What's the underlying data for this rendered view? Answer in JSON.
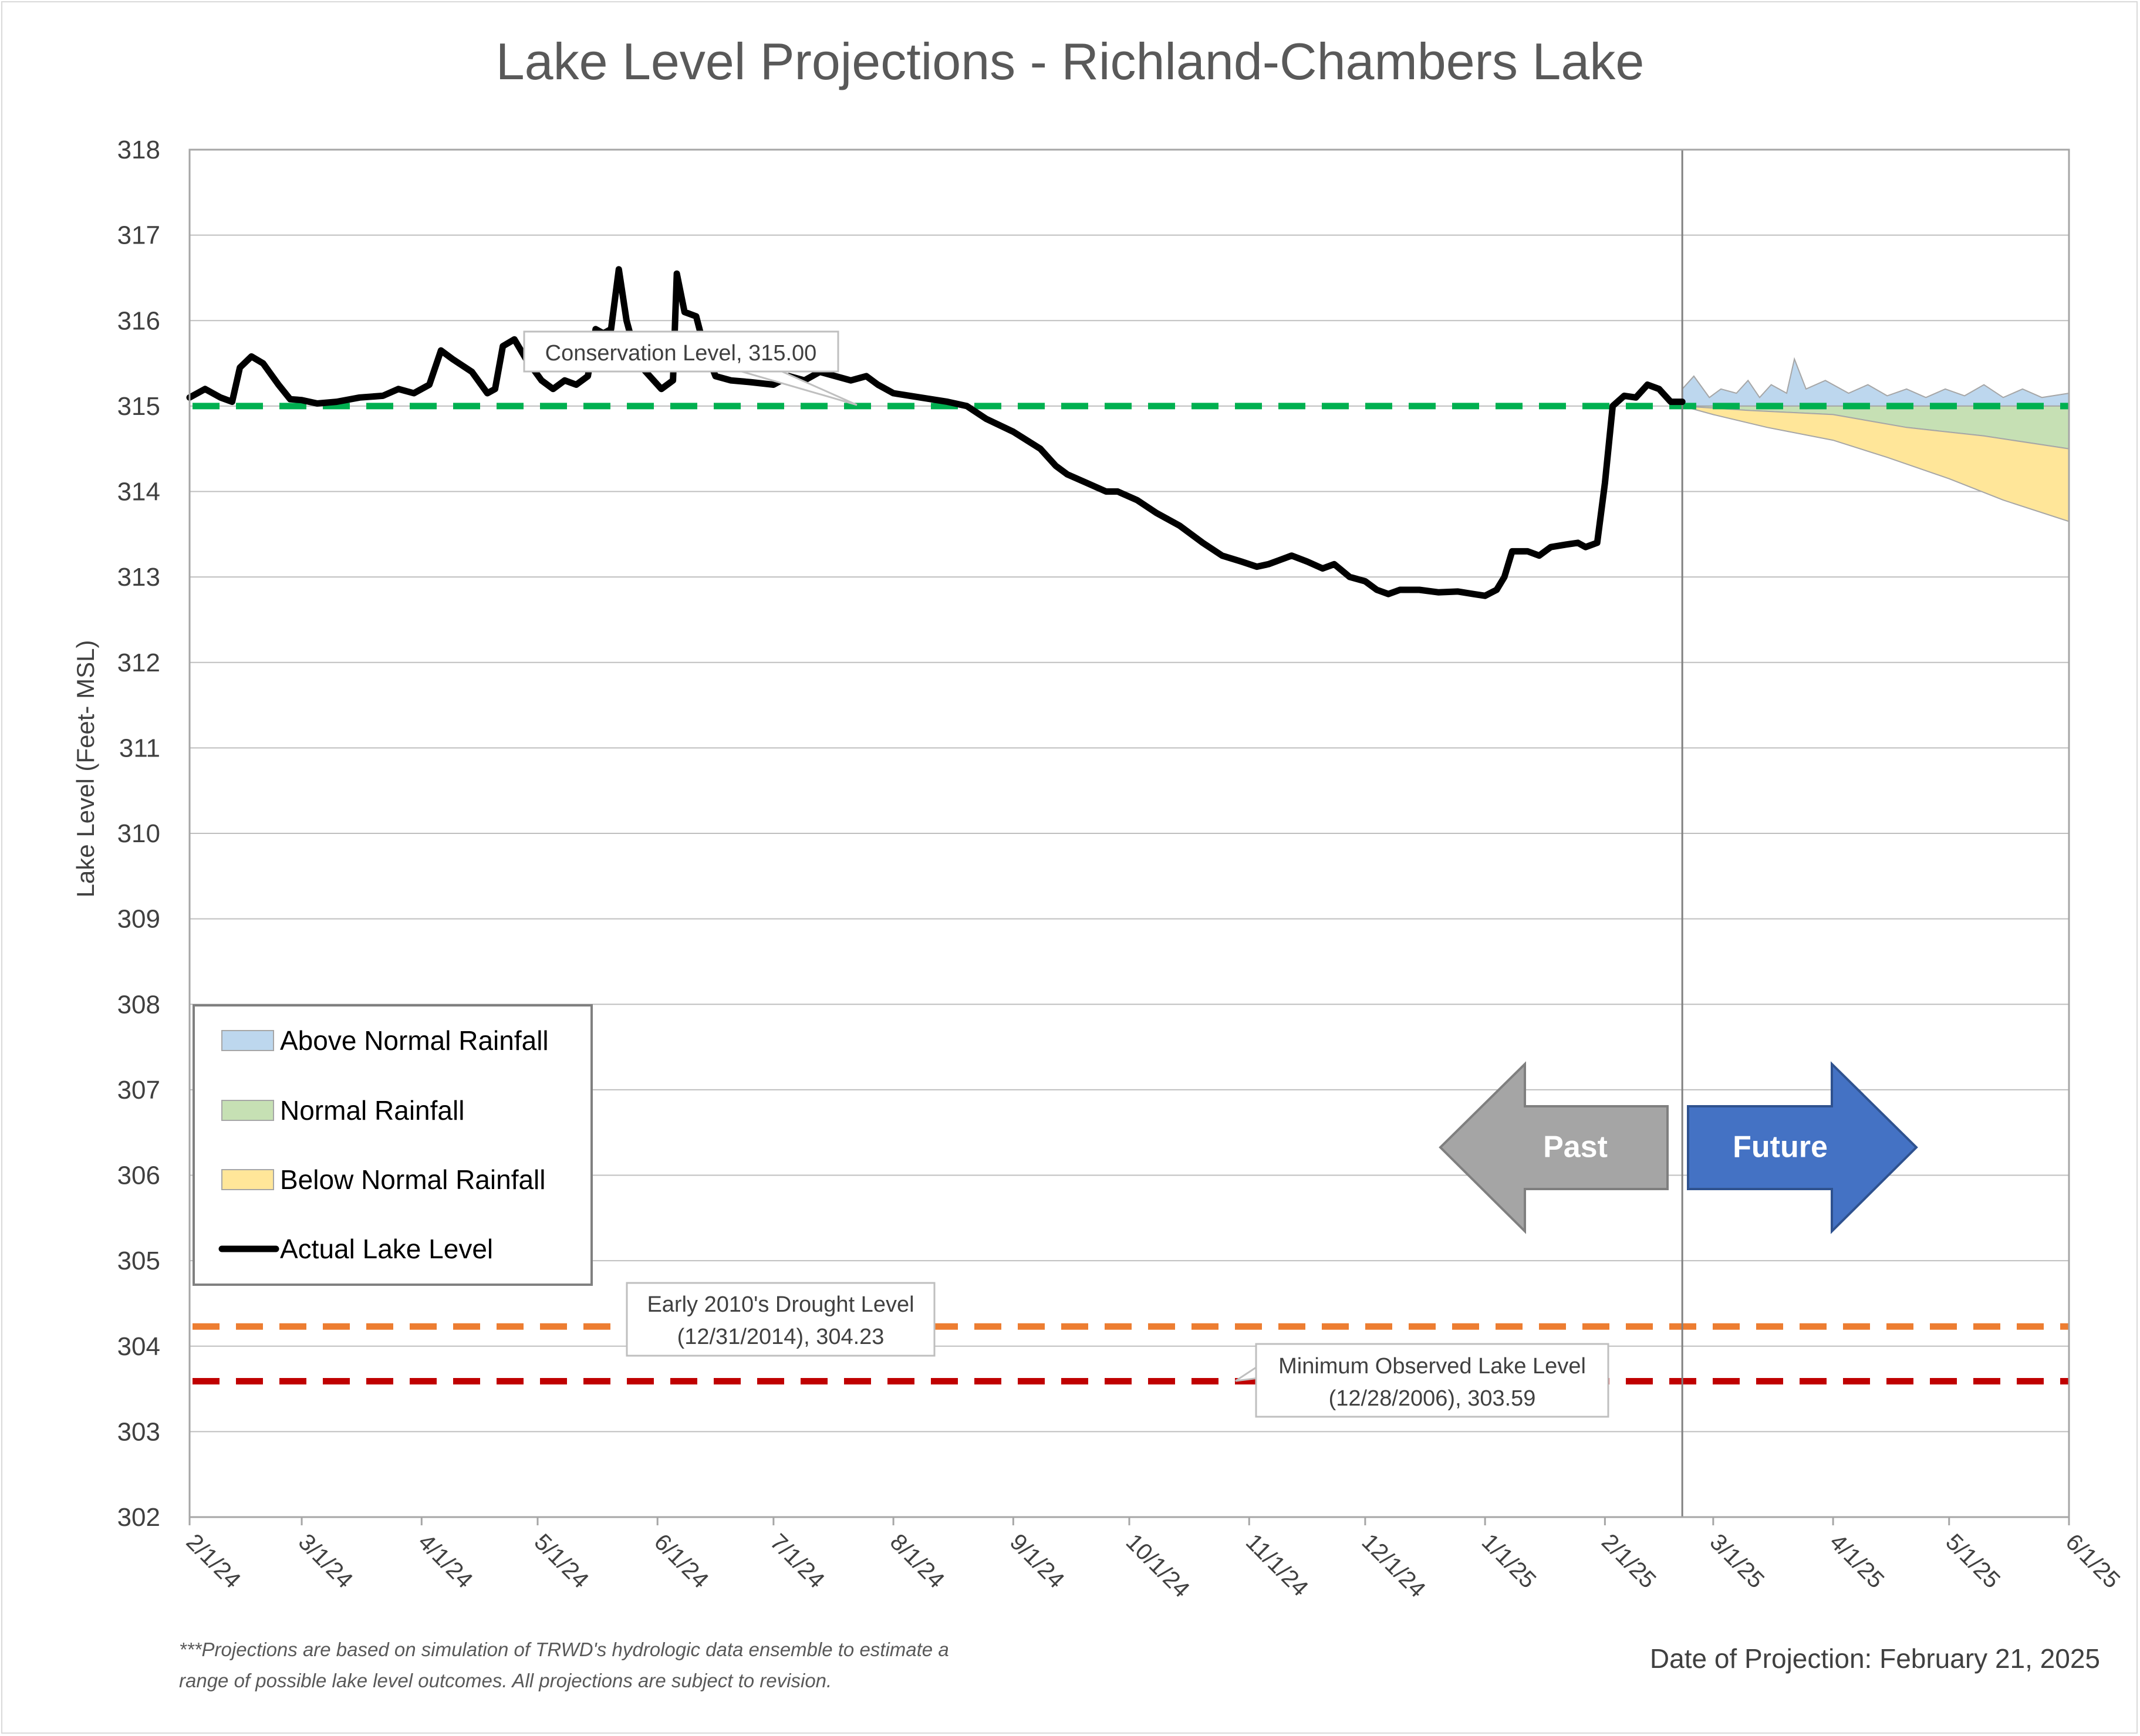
{
  "colors": {
    "actual": "#000000",
    "conservation": "#00b050",
    "drought": "#ed7d31",
    "minimum": "#c00000",
    "above_fill": "#bdd7ee",
    "normal_fill": "#c6e0b4",
    "below_fill": "#ffe699",
    "band_edge": "#a6a6a6",
    "past_arrow": "#a5a5a5",
    "future_arrow": "#4472c4",
    "grid": "#bfbfbf",
    "text": "#595959"
  },
  "chart_data": {
    "type": "line",
    "title": "Lake Level Projections - Richland-Chambers Lake",
    "ylabel": "Lake Level (Feet- MSL)",
    "xlabel": "",
    "ylim": [
      302,
      318
    ],
    "xlim": [
      "2024-02-01",
      "2025-06-01"
    ],
    "grid": "horizontal",
    "y_ticks": [
      "302",
      "303",
      "304",
      "305",
      "306",
      "307",
      "308",
      "309",
      "310",
      "311",
      "312",
      "313",
      "314",
      "315",
      "316",
      "317",
      "318"
    ],
    "x_ticks": [
      {
        "date": "2024-02-01",
        "label": "2/1/24"
      },
      {
        "date": "2024-03-01",
        "label": "3/1/24"
      },
      {
        "date": "2024-04-01",
        "label": "4/1/24"
      },
      {
        "date": "2024-05-01",
        "label": "5/1/24"
      },
      {
        "date": "2024-06-01",
        "label": "6/1/24"
      },
      {
        "date": "2024-07-01",
        "label": "7/1/24"
      },
      {
        "date": "2024-08-01",
        "label": "8/1/24"
      },
      {
        "date": "2024-09-01",
        "label": "9/1/24"
      },
      {
        "date": "2024-10-01",
        "label": "10/1/24"
      },
      {
        "date": "2024-11-01",
        "label": "11/1/24"
      },
      {
        "date": "2024-12-01",
        "label": "12/1/24"
      },
      {
        "date": "2025-01-01",
        "label": "1/1/25"
      },
      {
        "date": "2025-02-01",
        "label": "2/1/25"
      },
      {
        "date": "2025-03-01",
        "label": "3/1/25"
      },
      {
        "date": "2025-04-01",
        "label": "4/1/25"
      },
      {
        "date": "2025-05-01",
        "label": "5/1/25"
      },
      {
        "date": "2025-06-01",
        "label": "6/1/25"
      }
    ],
    "projection_date": "2025-02-21",
    "series": [
      {
        "name": "Actual Lake Level",
        "points": [
          [
            "2024-02-01",
            315.1
          ],
          [
            "2024-02-05",
            315.2
          ],
          [
            "2024-02-09",
            315.1
          ],
          [
            "2024-02-12",
            315.05
          ],
          [
            "2024-02-14",
            315.45
          ],
          [
            "2024-02-17",
            315.58
          ],
          [
            "2024-02-20",
            315.5
          ],
          [
            "2024-02-24",
            315.25
          ],
          [
            "2024-02-27",
            315.08
          ],
          [
            "2024-03-01",
            315.07
          ],
          [
            "2024-03-05",
            315.03
          ],
          [
            "2024-03-10",
            315.05
          ],
          [
            "2024-03-16",
            315.1
          ],
          [
            "2024-03-22",
            315.12
          ],
          [
            "2024-03-26",
            315.2
          ],
          [
            "2024-03-30",
            315.15
          ],
          [
            "2024-04-03",
            315.25
          ],
          [
            "2024-04-06",
            315.65
          ],
          [
            "2024-04-09",
            315.55
          ],
          [
            "2024-04-14",
            315.4
          ],
          [
            "2024-04-18",
            315.15
          ],
          [
            "2024-04-20",
            315.2
          ],
          [
            "2024-04-22",
            315.7
          ],
          [
            "2024-04-25",
            315.78
          ],
          [
            "2024-04-28",
            315.55
          ],
          [
            "2024-05-02",
            315.3
          ],
          [
            "2024-05-05",
            315.2
          ],
          [
            "2024-05-08",
            315.3
          ],
          [
            "2024-05-11",
            315.25
          ],
          [
            "2024-05-14",
            315.35
          ],
          [
            "2024-05-16",
            315.9
          ],
          [
            "2024-05-18",
            315.85
          ],
          [
            "2024-05-20",
            315.9
          ],
          [
            "2024-05-22",
            316.6
          ],
          [
            "2024-05-24",
            316.0
          ],
          [
            "2024-05-27",
            315.5
          ],
          [
            "2024-05-30",
            315.35
          ],
          [
            "2024-06-02",
            315.2
          ],
          [
            "2024-06-05",
            315.3
          ],
          [
            "2024-06-06",
            316.55
          ],
          [
            "2024-06-08",
            316.1
          ],
          [
            "2024-06-11",
            316.05
          ],
          [
            "2024-06-13",
            315.7
          ],
          [
            "2024-06-16",
            315.35
          ],
          [
            "2024-06-20",
            315.3
          ],
          [
            "2024-06-25",
            315.28
          ],
          [
            "2024-07-01",
            315.25
          ],
          [
            "2024-07-05",
            315.35
          ],
          [
            "2024-07-09",
            315.3
          ],
          [
            "2024-07-13",
            315.4
          ],
          [
            "2024-07-17",
            315.35
          ],
          [
            "2024-07-21",
            315.3
          ],
          [
            "2024-07-25",
            315.35
          ],
          [
            "2024-07-28",
            315.25
          ],
          [
            "2024-08-01",
            315.15
          ],
          [
            "2024-08-08",
            315.1
          ],
          [
            "2024-08-15",
            315.05
          ],
          [
            "2024-08-20",
            315.0
          ],
          [
            "2024-08-25",
            314.85
          ],
          [
            "2024-09-01",
            314.7
          ],
          [
            "2024-09-08",
            314.5
          ],
          [
            "2024-09-12",
            314.3
          ],
          [
            "2024-09-15",
            314.2
          ],
          [
            "2024-09-20",
            314.1
          ],
          [
            "2024-09-25",
            314.0
          ],
          [
            "2024-09-28",
            314.0
          ],
          [
            "2024-10-03",
            313.9
          ],
          [
            "2024-10-08",
            313.75
          ],
          [
            "2024-10-14",
            313.6
          ],
          [
            "2024-10-20",
            313.4
          ],
          [
            "2024-10-25",
            313.25
          ],
          [
            "2024-10-30",
            313.18
          ],
          [
            "2024-11-03",
            313.12
          ],
          [
            "2024-11-06",
            313.15
          ],
          [
            "2024-11-09",
            313.2
          ],
          [
            "2024-11-12",
            313.25
          ],
          [
            "2024-11-16",
            313.18
          ],
          [
            "2024-11-20",
            313.1
          ],
          [
            "2024-11-23",
            313.15
          ],
          [
            "2024-11-27",
            313.0
          ],
          [
            "2024-12-01",
            312.95
          ],
          [
            "2024-12-04",
            312.85
          ],
          [
            "2024-12-07",
            312.8
          ],
          [
            "2024-12-10",
            312.85
          ],
          [
            "2024-12-15",
            312.85
          ],
          [
            "2024-12-20",
            312.82
          ],
          [
            "2024-12-25",
            312.83
          ],
          [
            "2024-12-29",
            312.8
          ],
          [
            "2025-01-01",
            312.78
          ],
          [
            "2025-01-04",
            312.85
          ],
          [
            "2025-01-06",
            313.0
          ],
          [
            "2025-01-08",
            313.3
          ],
          [
            "2025-01-12",
            313.3
          ],
          [
            "2025-01-15",
            313.25
          ],
          [
            "2025-01-18",
            313.35
          ],
          [
            "2025-01-22",
            313.38
          ],
          [
            "2025-01-25",
            313.4
          ],
          [
            "2025-01-27",
            313.35
          ],
          [
            "2025-01-30",
            313.4
          ],
          [
            "2025-02-01",
            314.1
          ],
          [
            "2025-02-03",
            315.0
          ],
          [
            "2025-02-06",
            315.12
          ],
          [
            "2025-02-09",
            315.1
          ],
          [
            "2025-02-12",
            315.25
          ],
          [
            "2025-02-15",
            315.2
          ],
          [
            "2025-02-18",
            315.05
          ],
          [
            "2025-02-21",
            315.05
          ]
        ]
      },
      {
        "name": "Above Normal Rainfall",
        "lower": [
          [
            "2025-02-21",
            315.0
          ],
          [
            "2025-06-01",
            315.0
          ]
        ],
        "upper": [
          [
            "2025-02-21",
            315.2
          ],
          [
            "2025-02-24",
            315.35
          ],
          [
            "2025-02-28",
            315.1
          ],
          [
            "2025-03-03",
            315.2
          ],
          [
            "2025-03-07",
            315.15
          ],
          [
            "2025-03-10",
            315.3
          ],
          [
            "2025-03-13",
            315.1
          ],
          [
            "2025-03-16",
            315.25
          ],
          [
            "2025-03-20",
            315.15
          ],
          [
            "2025-03-22",
            315.55
          ],
          [
            "2025-03-25",
            315.2
          ],
          [
            "2025-03-30",
            315.3
          ],
          [
            "2025-04-05",
            315.15
          ],
          [
            "2025-04-10",
            315.25
          ],
          [
            "2025-04-15",
            315.12
          ],
          [
            "2025-04-20",
            315.2
          ],
          [
            "2025-04-25",
            315.1
          ],
          [
            "2025-04-30",
            315.2
          ],
          [
            "2025-05-05",
            315.12
          ],
          [
            "2025-05-10",
            315.25
          ],
          [
            "2025-05-15",
            315.1
          ],
          [
            "2025-05-20",
            315.2
          ],
          [
            "2025-05-25",
            315.1
          ],
          [
            "2025-06-01",
            315.15
          ]
        ]
      },
      {
        "name": "Normal Rainfall",
        "lower": [
          [
            "2025-02-21",
            315.0
          ],
          [
            "2025-03-10",
            314.95
          ],
          [
            "2025-04-01",
            314.9
          ],
          [
            "2025-04-20",
            314.75
          ],
          [
            "2025-05-10",
            314.65
          ],
          [
            "2025-06-01",
            314.5
          ]
        ],
        "upper": [
          [
            "2025-02-21",
            315.0
          ],
          [
            "2025-06-01",
            315.0
          ]
        ]
      },
      {
        "name": "Below Normal Rainfall",
        "lower": [
          [
            "2025-02-21",
            315.0
          ],
          [
            "2025-03-01",
            314.9
          ],
          [
            "2025-03-15",
            314.75
          ],
          [
            "2025-04-01",
            314.6
          ],
          [
            "2025-04-15",
            314.4
          ],
          [
            "2025-05-01",
            314.15
          ],
          [
            "2025-05-15",
            313.9
          ],
          [
            "2025-06-01",
            313.65
          ]
        ],
        "upper": [
          [
            "2025-02-21",
            315.0
          ],
          [
            "2025-03-10",
            314.95
          ],
          [
            "2025-04-01",
            314.9
          ],
          [
            "2025-04-20",
            314.75
          ],
          [
            "2025-05-10",
            314.65
          ],
          [
            "2025-06-01",
            314.5
          ]
        ]
      }
    ],
    "reference_lines": [
      {
        "key": "conservation",
        "value": 315.0
      },
      {
        "key": "drought",
        "value": 304.23
      },
      {
        "key": "minimum",
        "value": 303.59
      }
    ]
  },
  "legend": {
    "items": [
      {
        "label": "Above Normal Rainfall",
        "kind": "fill",
        "color_key": "above_fill"
      },
      {
        "label": "Normal Rainfall",
        "kind": "fill",
        "color_key": "normal_fill"
      },
      {
        "label": "Below Normal Rainfall",
        "kind": "fill",
        "color_key": "below_fill"
      },
      {
        "label": "Actual Lake Level",
        "kind": "line",
        "color_key": "actual"
      }
    ]
  },
  "callouts": {
    "conservation": {
      "line1": "Conservation Level, 315.00"
    },
    "drought": {
      "line1": "Early 2010's Drought Level",
      "line2": "(12/31/2014), 304.23"
    },
    "minimum": {
      "line1": "Minimum Observed Lake Level",
      "line2": "(12/28/2006), 303.59"
    }
  },
  "arrows": {
    "past": "Past",
    "future": "Future"
  },
  "footnote": {
    "line1": "***Projections are based on simulation of TRWD's hydrologic data ensemble to estimate a",
    "line2": "range of possible lake level outcomes.  All projections are subject to revision."
  },
  "projection_label": "Date of Projection: February 21, 2025"
}
